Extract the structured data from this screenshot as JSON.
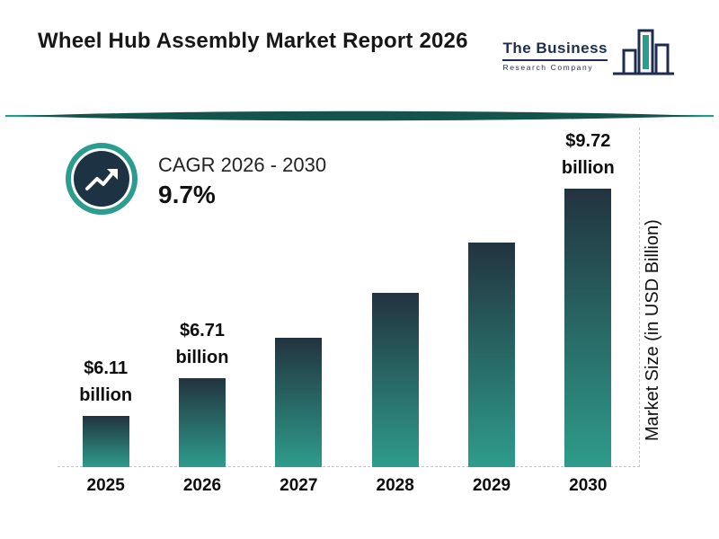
{
  "header": {
    "title": "Wheel Hub Assembly Market Report 2026",
    "logo": {
      "line1": "The Business",
      "line2": "Research Company"
    }
  },
  "cagr": {
    "label": "CAGR 2026 - 2030",
    "value": "9.7%"
  },
  "chart_data": {
    "type": "bar",
    "title": "Wheel Hub Assembly Market Report 2026",
    "categories": [
      "2025",
      "2026",
      "2027",
      "2028",
      "2029",
      "2030"
    ],
    "values": [
      6.11,
      6.71,
      7.36,
      8.07,
      8.86,
      9.72
    ],
    "data_labels": [
      {
        "index": 0,
        "line1": "$6.11",
        "line2": "billion"
      },
      {
        "index": 1,
        "line1": "$6.71",
        "line2": "billion"
      },
      {
        "index": 5,
        "line1": "$9.72",
        "line2": "billion"
      }
    ],
    "xlabel": "",
    "ylabel": "Market Size (in USD Billion)",
    "ylim": [
      5.3,
      9.72
    ],
    "grid": false,
    "legend": false,
    "bar_gradient_top": "#22333f",
    "bar_gradient_bottom": "#2e9c8b"
  },
  "colors": {
    "accent_teal": "#2a9d8f",
    "dark_navy": "#1d3344",
    "divider_dark": "#14544a"
  }
}
